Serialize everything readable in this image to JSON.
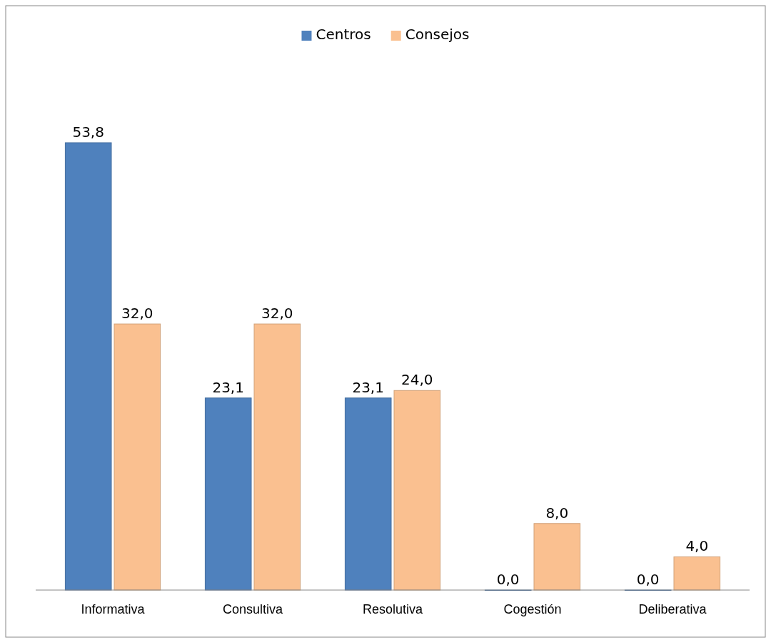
{
  "chart_data": {
    "type": "bar",
    "categories": [
      "Informativa",
      "Consultiva",
      "Resolutiva",
      "Cogestión",
      "Deliberativa"
    ],
    "series": [
      {
        "name": "Centros",
        "color": "#4f81bd",
        "values": [
          53.8,
          23.1,
          23.1,
          0,
          0
        ],
        "value_labels": [
          "53,8",
          "23,1",
          "23,1",
          "0,0",
          "0,0"
        ]
      },
      {
        "name": "Consejos",
        "color": "#fac090",
        "values": [
          32,
          32,
          24,
          8,
          4
        ],
        "value_labels": [
          "32,0",
          "32,0",
          "24,0",
          "8,0",
          "4,0"
        ]
      }
    ],
    "legend": "top"
  }
}
